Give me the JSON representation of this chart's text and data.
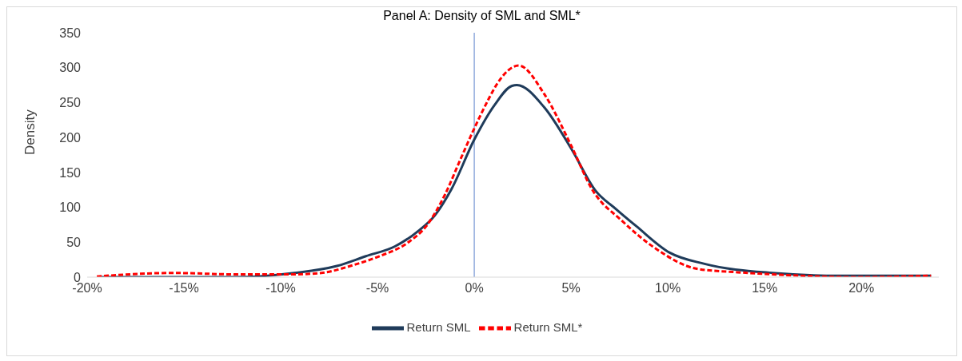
{
  "chart_data": {
    "type": "line",
    "title": "Panel A: Density of SML and SML*",
    "ylabel": "Density",
    "xlim": [
      -20,
      24
    ],
    "xticks": [
      {
        "value": -20,
        "label": "-20%"
      },
      {
        "value": -15,
        "label": "-15%"
      },
      {
        "value": -10,
        "label": "-10%"
      },
      {
        "value": -5,
        "label": "-5%"
      },
      {
        "value": 0,
        "label": "0%"
      },
      {
        "value": 5,
        "label": "5%"
      },
      {
        "value": 10,
        "label": "10%"
      },
      {
        "value": 15,
        "label": "15%"
      },
      {
        "value": 20,
        "label": "20%"
      }
    ],
    "ylim": [
      0,
      350
    ],
    "yticks": [
      0,
      50,
      100,
      150,
      200,
      250,
      300,
      350
    ],
    "grid": false,
    "legend": "bottom",
    "marker": "none",
    "ref_lines": [
      {
        "axis": "x",
        "value": 0,
        "color": "#8faadc"
      }
    ],
    "series": [
      {
        "name": "Return SML",
        "color": "#1f3b5a",
        "line_style": "solid",
        "x": [
          -19.4,
          -15.6,
          -12.3,
          -9.3,
          -7.1,
          -5.6,
          -4.1,
          -2.9,
          -2.05,
          -1.16,
          0,
          1.06,
          1.95,
          2.2,
          3.62,
          5.03,
          6.26,
          7.3,
          8.37,
          10.1,
          11.9,
          15.4,
          18.9,
          23.6
        ],
        "values": [
          0,
          0,
          0,
          6,
          16,
          30,
          44,
          66,
          88,
          127,
          197,
          247,
          274,
          275,
          243,
          183,
          124,
          98,
          73,
          35,
          19,
          6,
          2,
          2
        ]
      },
      {
        "name": "Return SML*",
        "color": "#ff0000",
        "line_style": "dashed",
        "x": [
          -19.5,
          -15.6,
          -12.35,
          -9.4,
          -7.9,
          -6.4,
          -4.9,
          -3.4,
          -2.4,
          -1.5,
          -0.74,
          0,
          0.74,
          1.16,
          2.3,
          3.62,
          5.03,
          6.08,
          7.66,
          9.42,
          11.5,
          13.6,
          15.4,
          19.8,
          23.6
        ],
        "values": [
          1,
          6,
          4,
          4,
          6,
          16,
          30,
          50,
          76,
          119,
          167,
          213,
          255,
          276,
          303,
          262,
          187,
          126,
          80,
          40,
          12,
          7,
          4,
          0,
          2
        ]
      }
    ]
  }
}
